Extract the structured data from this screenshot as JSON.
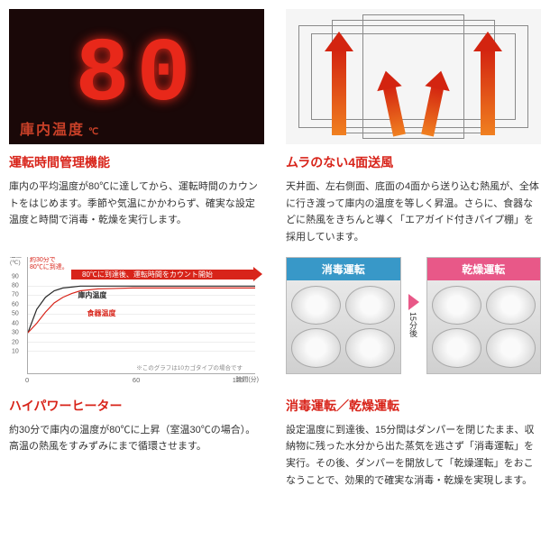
{
  "colors": {
    "heading_red": "#d8241a",
    "line_black": "#2a2a2a",
    "line_red": "#d8241a",
    "panel_blue": "#3898c8",
    "panel_pink": "#e85888"
  },
  "s1": {
    "title": "運転時間管理機能",
    "body": "庫内の平均温度が80℃に達してから、運転時間のカウントをはじめます。季節や気温にかかわらず、確実な設定温度と時間で消毒・乾燥を実行します。",
    "display_value": "80",
    "display_label": "庫内温度",
    "display_unit": "℃"
  },
  "s2": {
    "title": "ムラのない4面送風",
    "body": "天井面、左右側面、底面の4面から送り込む熱風が、全体に行き渡って庫内の温度を等しく昇温。さらに、食器などに熱風をきちんと導く「エアガイド付きパイプ棚」を採用しています。"
  },
  "s3": {
    "title": "ハイパワーヒーター",
    "body": "約30分で庫内の温度が80℃に上昇（室温30℃の場合）。高温の熱風をすみずみにまで循環させます。",
    "chart": {
      "type": "line",
      "top_note": "約30分で\n80℃に到達。",
      "arrow_label": "80℃に到達後、運転時間をカウント開始",
      "y_title": "温度\n(℃)",
      "x_title": "時間(分)",
      "ylim": [
        0,
        90
      ],
      "ytick_step": 10,
      "yticks": [
        0,
        10,
        20,
        30,
        40,
        50,
        60,
        70,
        80,
        90
      ],
      "xlim": [
        0,
        130
      ],
      "xticks": [
        0,
        60,
        120
      ],
      "line1_label": "庫内温度",
      "line1_color": "#2a2a2a",
      "line2_label": "食器温度",
      "line2_color": "#d8241a",
      "bottom_note": "※このグラフは10カゴタイプの場合です",
      "line1_points": [
        [
          0,
          30
        ],
        [
          5,
          55
        ],
        [
          10,
          68
        ],
        [
          15,
          75
        ],
        [
          20,
          78
        ],
        [
          25,
          79
        ],
        [
          30,
          80
        ],
        [
          60,
          80
        ],
        [
          90,
          80
        ],
        [
          120,
          80
        ],
        [
          130,
          80
        ]
      ],
      "line2_points": [
        [
          0,
          30
        ],
        [
          5,
          40
        ],
        [
          10,
          52
        ],
        [
          15,
          62
        ],
        [
          20,
          68
        ],
        [
          25,
          72
        ],
        [
          30,
          75
        ],
        [
          40,
          77
        ],
        [
          60,
          78
        ],
        [
          90,
          78
        ],
        [
          120,
          78
        ],
        [
          130,
          78
        ]
      ]
    }
  },
  "s4": {
    "title": "消毒運転／乾燥運転",
    "body": "設定温度に到達後、15分間はダンパーを閉じたまま、収納物に残った水分から出た蒸気を逃さず「消毒運転」を実行。その後、ダンパーを開放して「乾燥運転」をおこなうことで、効果的で確実な消毒・乾燥を実現します。",
    "panel1_label": "消毒運転",
    "panel2_label": "乾燥運転",
    "gap_label": "15分後"
  }
}
